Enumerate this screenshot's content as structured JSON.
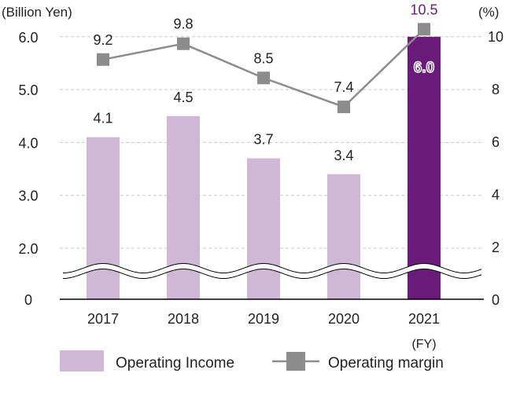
{
  "chart_data": {
    "type": "bar+line",
    "categories": [
      "2017",
      "2018",
      "2019",
      "2020",
      "2021"
    ],
    "x_unit": "(FY)",
    "left_axis": {
      "label": "(Billion Yen)",
      "ticks": [
        "0",
        "2.0",
        "3.0",
        "4.0",
        "5.0",
        "6.0"
      ],
      "range": [
        0,
        6.0
      ],
      "broken_between": [
        0,
        2.0
      ]
    },
    "right_axis": {
      "label": "(%)",
      "ticks": [
        "0",
        "2",
        "4",
        "6",
        "8",
        "10"
      ],
      "range": [
        0,
        10
      ]
    },
    "grid": true,
    "legend_position": "bottom",
    "series": [
      {
        "name": "Operating Income",
        "kind": "bar",
        "axis": "left",
        "values": [
          4.1,
          4.5,
          3.7,
          3.4,
          6.0
        ],
        "labels": [
          "4.1",
          "4.5",
          "3.7",
          "3.4",
          "6.0"
        ],
        "color": "#cfb8d6",
        "highlight_color": "#6a1b7a"
      },
      {
        "name": "Operating margin",
        "kind": "line",
        "axis": "right",
        "values": [
          9.2,
          9.8,
          8.5,
          7.4,
          10.5
        ],
        "labels": [
          "9.2",
          "9.8",
          "8.5",
          "7.4",
          "10.5"
        ],
        "color": "#8c8c8c",
        "highlight_label_color": "#6a1b7a"
      }
    ]
  }
}
